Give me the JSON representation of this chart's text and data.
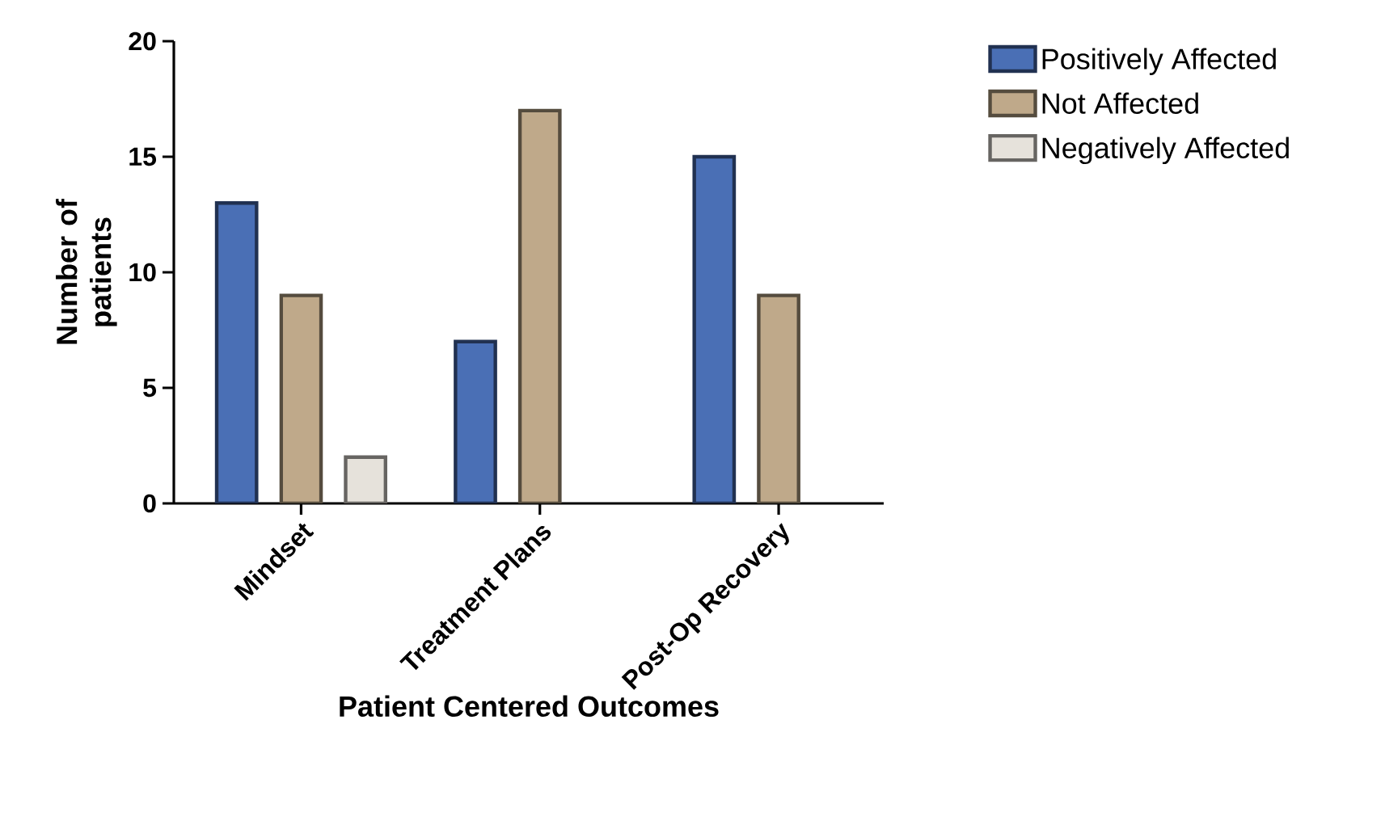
{
  "chart_data": {
    "type": "bar",
    "xlabel": "Patient Centered Outcomes",
    "ylabel": "Number of patients",
    "categories": [
      "Mindset",
      "Treatment Plans",
      "Post-Op Recovery"
    ],
    "series": [
      {
        "name": "Positively Affected",
        "color": "#4a6fb5",
        "values": [
          13,
          7,
          15
        ]
      },
      {
        "name": "Not Affected",
        "color": "#bfa98a",
        "values": [
          9,
          17,
          9
        ]
      },
      {
        "name": "Negatively Affected",
        "color": "#e6e2db",
        "values": [
          2,
          null,
          null
        ]
      }
    ],
    "ylim": [
      0,
      20
    ],
    "yticks": [
      0,
      5,
      10,
      15,
      20
    ],
    "legend": "right"
  }
}
